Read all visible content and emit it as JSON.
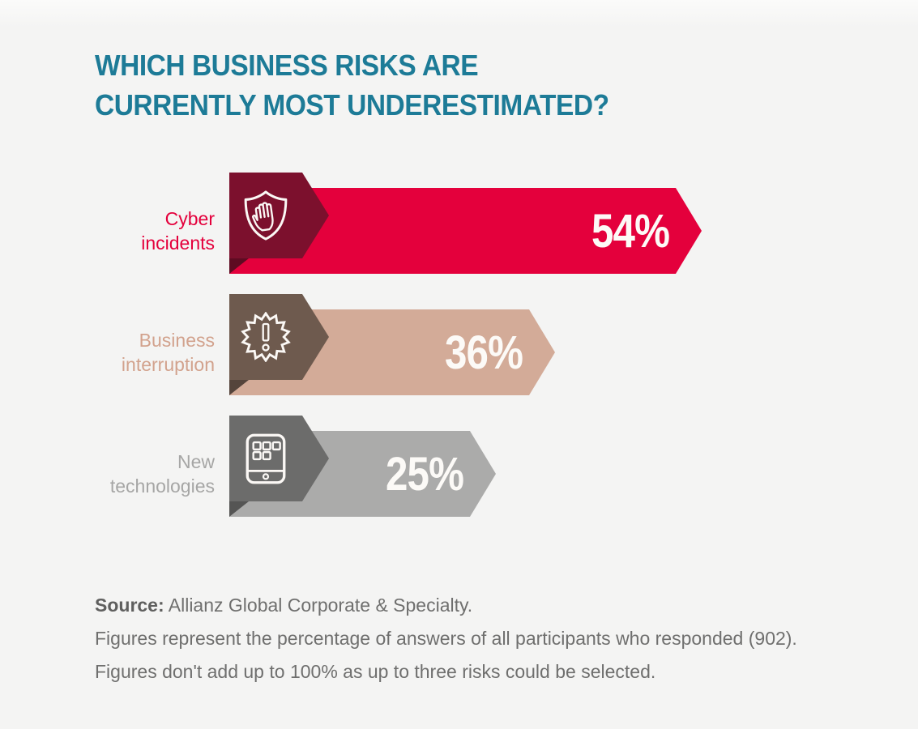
{
  "title": {
    "line1": "WHICH BUSINESS RISKS ARE",
    "line2": "CURRENTLY MOST UNDERESTIMATED?"
  },
  "chart_data": {
    "type": "bar",
    "orientation": "horizontal",
    "title": "WHICH BUSINESS RISKS ARE CURRENTLY MOST UNDERESTIMATED?",
    "categories": [
      "Cyber incidents",
      "Business interruption",
      "New technologies"
    ],
    "values": [
      54,
      36,
      25
    ],
    "unit": "%",
    "value_labels": [
      "54%",
      "36%",
      "25%"
    ],
    "grid": false,
    "legend": "none",
    "bar_colors": [
      "#e4003c",
      "#d3ab98",
      "#ababaa"
    ],
    "icon_block_colors": [
      "#7c102d",
      "#6e5a4e",
      "#6c6c6b"
    ]
  },
  "bars": [
    {
      "slug": "cyber-incidents",
      "label_lines": [
        "Cyber",
        "incidents"
      ],
      "value": 54,
      "value_label": "54%",
      "icon": "shield-hand-icon",
      "bar_color": "#e4003c",
      "block_color": "#7c102d",
      "fold_color": "#5e0b22",
      "label_color": "#e4003c",
      "bar_length": 583
    },
    {
      "slug": "business-interruption",
      "label_lines": [
        "Business",
        "interruption"
      ],
      "value": 36,
      "value_label": "36%",
      "icon": "burst-exclamation-icon",
      "bar_color": "#d3ab98",
      "block_color": "#6e5a4e",
      "fold_color": "#55443b",
      "label_color": "#d2a28d",
      "bar_length": 402
    },
    {
      "slug": "new-technologies",
      "label_lines": [
        "New",
        "technologies"
      ],
      "value": 25,
      "value_label": "25%",
      "icon": "tablet-apps-icon",
      "bar_color": "#ababaa",
      "block_color": "#6c6c6b",
      "fold_color": "#555554",
      "label_color": "#a6a6a5",
      "bar_length": 329
    }
  ],
  "source": {
    "label": "Source:",
    "text": " Allianz Global Corporate & Specialty.",
    "line2": "Figures represent the percentage of answers of all participants who responded (902).",
    "line3": "Figures don't add up to 100% as up to three risks could be selected."
  },
  "colors": {
    "background": "#f4f4f3",
    "title": "#1d7b97",
    "source_text": "#6f6f6e",
    "percent_text": "#fcfaf7"
  }
}
